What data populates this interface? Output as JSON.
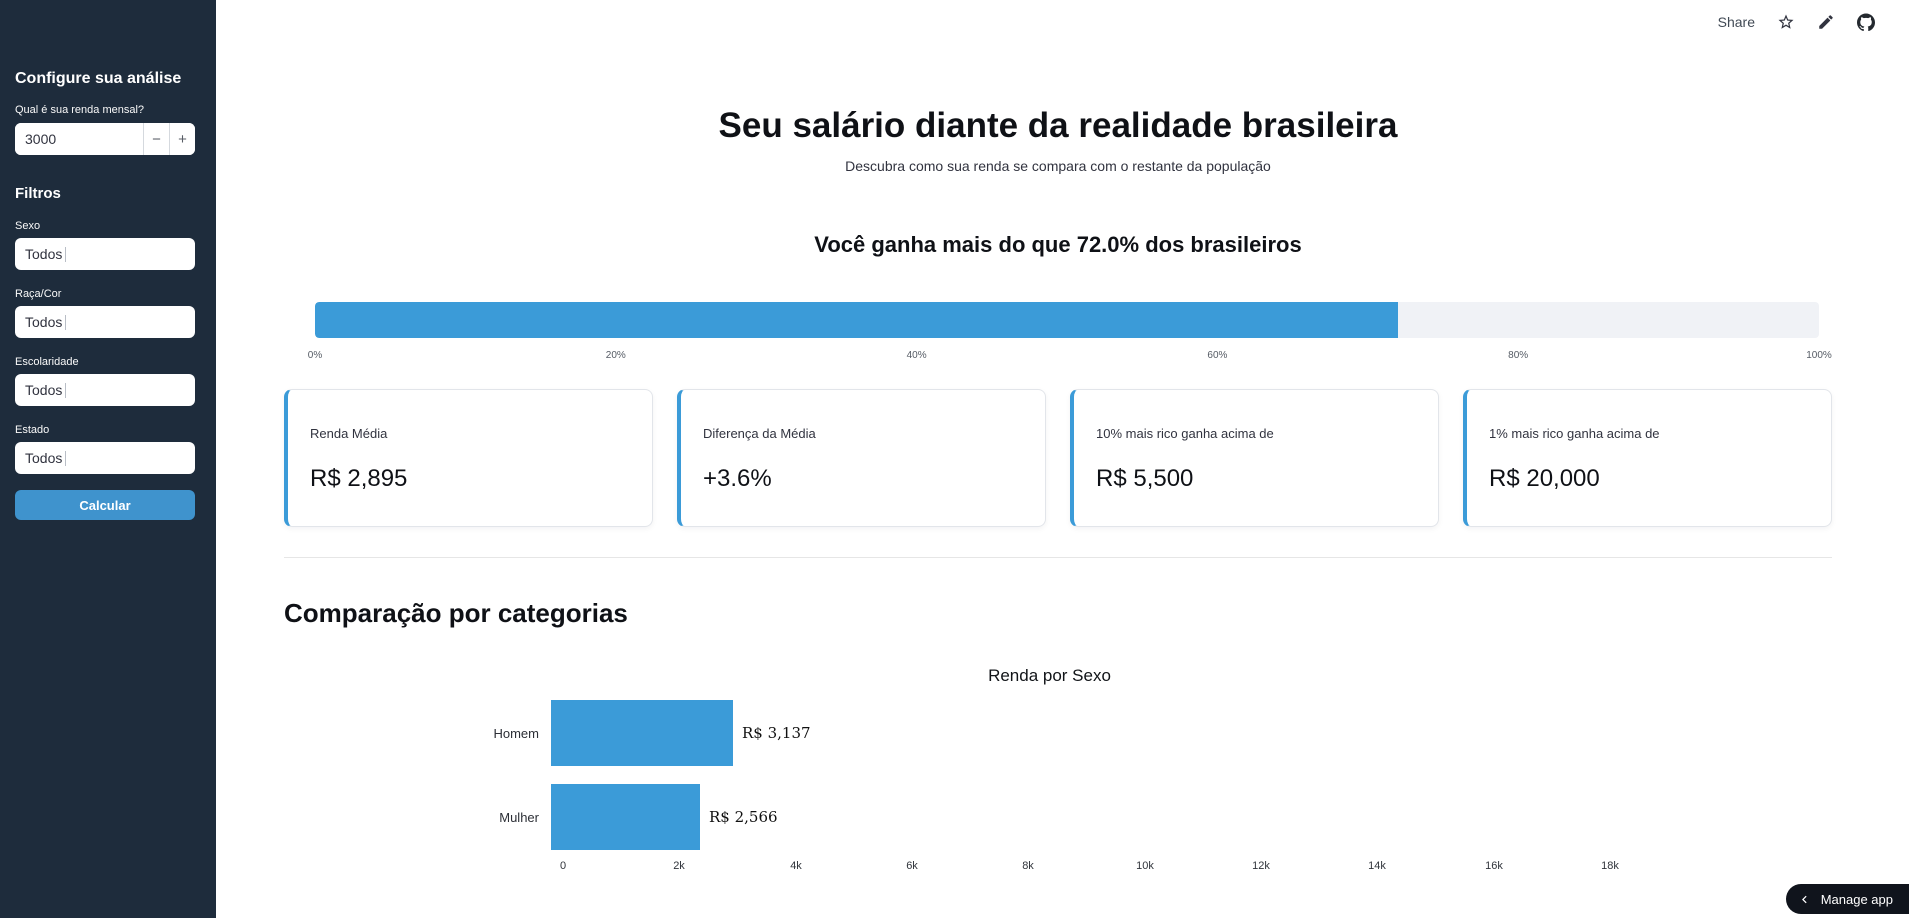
{
  "accent": "#3b9bd8",
  "sidebar": {
    "config_heading": "Configure sua análise",
    "income_label": "Qual é sua renda mensal?",
    "income_value": "3000",
    "minus_label": "−",
    "plus_label": "+",
    "filters_heading": "Filtros",
    "filters": [
      {
        "label": "Sexo",
        "value": "Todos"
      },
      {
        "label": "Raça/Cor",
        "value": "Todos"
      },
      {
        "label": "Escolaridade",
        "value": "Todos"
      },
      {
        "label": "Estado",
        "value": "Todos"
      }
    ],
    "calculate_button": "Calcular"
  },
  "toolbar": {
    "share_label": "Share"
  },
  "main": {
    "title": "Seu salário diante da realidade brasileira",
    "subtitle": "Descubra como sua renda se compara com o restante da população",
    "percentile_heading": "Você ganha mais do que 72.0% dos brasileiros",
    "progress": {
      "percent": 72.0,
      "ticks": [
        "0%",
        "20%",
        "40%",
        "60%",
        "80%",
        "100%"
      ]
    },
    "metrics": [
      {
        "label": "Renda Média",
        "value": "R$ 2,895"
      },
      {
        "label": "Diferença da Média",
        "value": "+3.6%"
      },
      {
        "label": "10% mais rico ganha acima de",
        "value": "R$ 5,500"
      },
      {
        "label": "1% mais rico ganha acima de",
        "value": "R$ 20,000"
      }
    ],
    "section_heading": "Comparação por categorias"
  },
  "chart_data": {
    "type": "bar",
    "orientation": "horizontal",
    "title": "Renda por Sexo",
    "categories": [
      "Homem",
      "Mulher"
    ],
    "values": [
      3137,
      2566
    ],
    "value_labels": [
      "R$ 3,137",
      "R$ 2,566"
    ],
    "x_ticks": [
      "0",
      "2k",
      "4k",
      "6k",
      "8k",
      "10k",
      "12k",
      "14k",
      "16k",
      "18k"
    ],
    "x_tick_values": [
      0,
      2000,
      4000,
      6000,
      8000,
      10000,
      12000,
      14000,
      16000,
      18000
    ],
    "xlim": [
      0,
      19000
    ],
    "bar_color": "#3b9bd8",
    "legend": false,
    "grid": false
  },
  "manage_app": {
    "label": "Manage app"
  }
}
